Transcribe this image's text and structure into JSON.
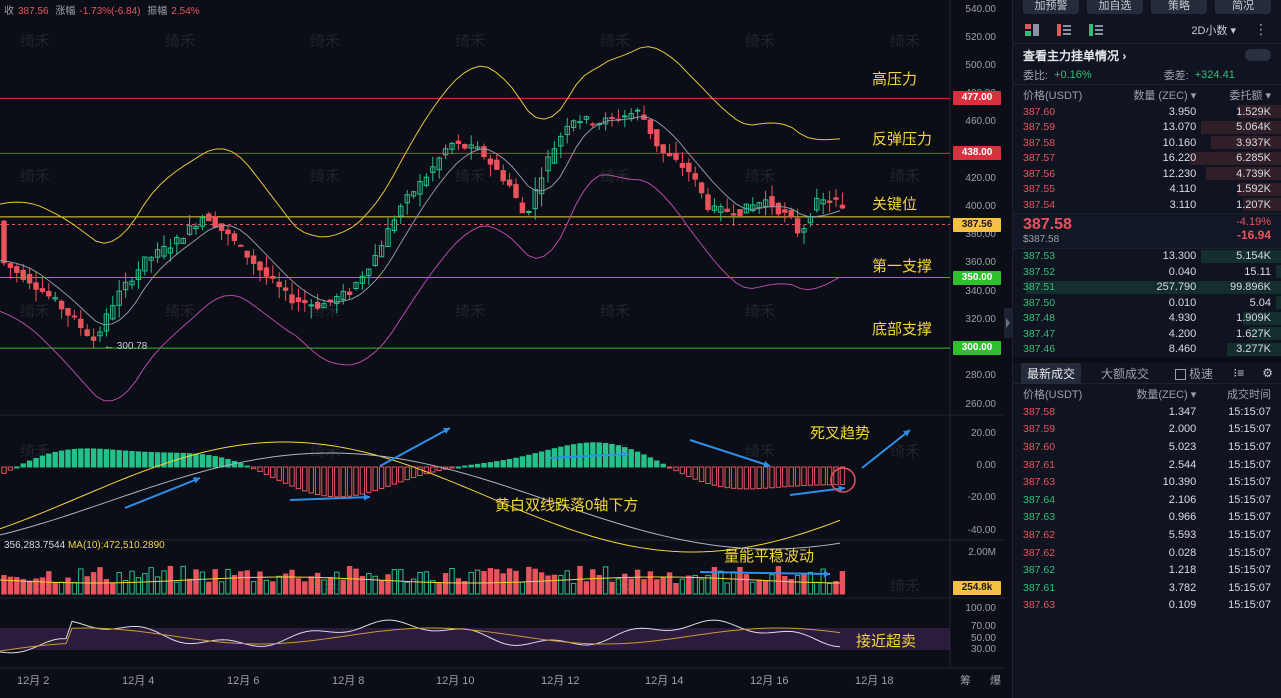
{
  "chart": {
    "info": {
      "close_label": "收",
      "close_value": "387.56",
      "change_label": "涨幅",
      "change_value": "-1.73%(-6.84)",
      "amplitude_label": "振幅",
      "amplitude_value": "2.54%"
    },
    "macd_label": "356,283.7544",
    "ma10_label": "MA(10):472,510.2890",
    "low_marker": "← 300.78",
    "watermark": "绮禾",
    "price_axis": [
      "540.00",
      "520.00",
      "500.00",
      "480.00",
      "460.00",
      "440.00",
      "420.00",
      "400.00",
      "380.00",
      "360.00",
      "340.00",
      "320.00",
      "300.00",
      "280.00",
      "260.00"
    ],
    "price_tags": [
      {
        "value": "477.00",
        "color": "#d9303d",
        "text_color": "#ffffff"
      },
      {
        "value": "438.00",
        "color": "#d9303d",
        "text_color": "#ffffff"
      },
      {
        "value": "387.56",
        "color": "#f5c043",
        "text_color": "#1a1a1a"
      },
      {
        "value": "350.00",
        "color": "#2fbf2f",
        "text_color": "#ffffff"
      },
      {
        "value": "300.00",
        "color": "#2fbf2f",
        "text_color": "#ffffff"
      }
    ],
    "macd_axis": [
      "20.00",
      "0.00",
      "-20.00",
      "-40.00"
    ],
    "volume_axis": [
      "2.00M"
    ],
    "volume_tag": "254.8k",
    "rsi_axis": [
      "100.00",
      "70.00",
      "50.00",
      "30.00"
    ],
    "annotations": {
      "high_resistance": "高压力",
      "rebound_resistance": "反弹压力",
      "key_level": "关键位",
      "first_support": "第一支撑",
      "bottom_support": "底部支撑",
      "death_cross": "死叉趋势",
      "macd_note": "黄白双线跌落0轴下方",
      "volume_note": "量能平稳波动",
      "oversold_note": "接近超卖"
    },
    "dates": [
      "12月 2",
      "12月 4",
      "12月 6",
      "12月 8",
      "12月 10",
      "12月 12",
      "12月 14",
      "12月 16",
      "12月 18"
    ],
    "corner_labels": [
      "筹",
      "爆"
    ]
  },
  "panel": {
    "top_buttons": [
      "加预警",
      "加自选",
      "策略",
      "简况"
    ],
    "interval": "2D小数",
    "orderbook_title": "查看主力挂单情况",
    "ratio_label": "委比:",
    "ratio_value": "+0.16%",
    "diff_label": "委差:",
    "diff_value": "+324.41",
    "headers": {
      "price": "价格(USDT)",
      "qty": "数量 (ZEC)",
      "total": "委托额"
    },
    "asks": [
      {
        "price": "387.60",
        "qty": "3.950",
        "total": "1.529K",
        "depth": 0.16
      },
      {
        "price": "387.59",
        "qty": "13.070",
        "total": "5.064K",
        "depth": 0.3
      },
      {
        "price": "387.58",
        "qty": "10.160",
        "total": "3.937K",
        "depth": 0.26
      },
      {
        "price": "387.57",
        "qty": "16.220",
        "total": "6.285K",
        "depth": 0.34
      },
      {
        "price": "387.56",
        "qty": "12.230",
        "total": "4.739K",
        "depth": 0.28
      },
      {
        "price": "387.55",
        "qty": "4.110",
        "total": "1.592K",
        "depth": 0.16
      },
      {
        "price": "387.54",
        "qty": "3.110",
        "total": "1.207K",
        "depth": 0.14
      }
    ],
    "last_price": "387.58",
    "last_price_sub": "$387.58",
    "last_change_pct": "-4.19%",
    "last_change": "-16.94",
    "bids": [
      {
        "price": "387.53",
        "qty": "13.300",
        "total": "5.154K",
        "depth": 0.3
      },
      {
        "price": "387.52",
        "qty": "0.040",
        "total": "15.11",
        "depth": 0.02
      },
      {
        "price": "387.51",
        "qty": "257.790",
        "total": "99.896K",
        "depth": 0.95
      },
      {
        "price": "387.50",
        "qty": "0.010",
        "total": "5.04",
        "depth": 0.02
      },
      {
        "price": "387.48",
        "qty": "4.930",
        "total": "1.909K",
        "depth": 0.14
      },
      {
        "price": "387.47",
        "qty": "4.200",
        "total": "1.627K",
        "depth": 0.12
      },
      {
        "price": "387.46",
        "qty": "8.460",
        "total": "3.277K",
        "depth": 0.2
      }
    ],
    "trades_tab_active": "最新成交",
    "trades_tab_other": "大额成交",
    "fast_label": "极速",
    "trade_headers": {
      "price": "价格(USDT)",
      "qty": "数量(ZEC)",
      "time": "成交时间"
    },
    "trades": [
      {
        "price": "387.58",
        "qty": "1.347",
        "time": "15:15:07",
        "side": "sell"
      },
      {
        "price": "387.59",
        "qty": "2.000",
        "time": "15:15:07",
        "side": "sell"
      },
      {
        "price": "387.60",
        "qty": "5.023",
        "time": "15:15:07",
        "side": "sell"
      },
      {
        "price": "387.61",
        "qty": "2.544",
        "time": "15:15:07",
        "side": "sell"
      },
      {
        "price": "387.63",
        "qty": "10.390",
        "time": "15:15:07",
        "side": "sell"
      },
      {
        "price": "387.64",
        "qty": "2.106",
        "time": "15:15:07",
        "side": "buy"
      },
      {
        "price": "387.63",
        "qty": "0.966",
        "time": "15:15:07",
        "side": "buy"
      },
      {
        "price": "387.62",
        "qty": "5.593",
        "time": "15:15:07",
        "side": "sell"
      },
      {
        "price": "387.62",
        "qty": "0.028",
        "time": "15:15:07",
        "side": "sell"
      },
      {
        "price": "387.62",
        "qty": "1.218",
        "time": "15:15:07",
        "side": "buy"
      },
      {
        "price": "387.61",
        "qty": "3.782",
        "time": "15:15:07",
        "side": "buy"
      },
      {
        "price": "387.63",
        "qty": "0.109",
        "time": "15:15:07",
        "side": "sell"
      }
    ]
  }
}
